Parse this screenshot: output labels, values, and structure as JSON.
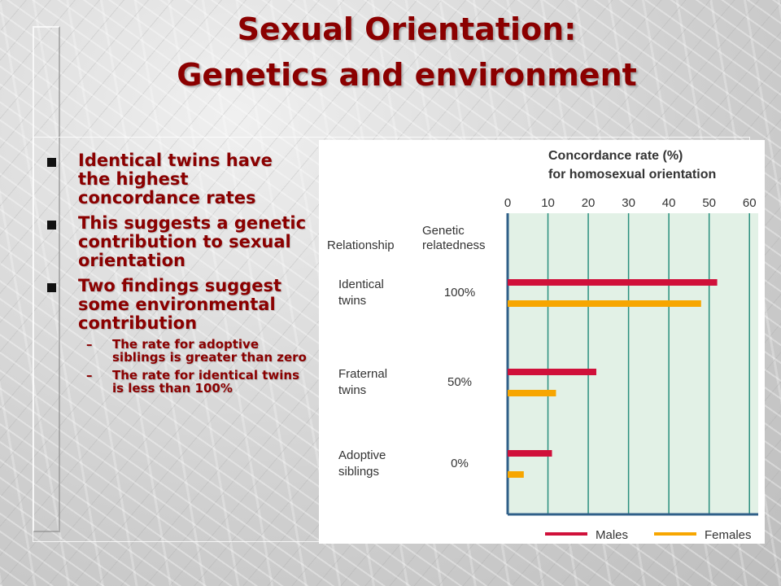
{
  "slide": {
    "title_line1": "Sexual Orientation:",
    "title_line2": "Genetics and environment",
    "bullets": [
      {
        "text": "Identical twins have the highest concordance rates"
      },
      {
        "text": "This suggests a genetic contribution to sexual orientation"
      },
      {
        "text": "Two findings suggest some environmental contribution",
        "sub": [
          "The rate for adoptive siblings is greater than zero",
          "The rate for identical twins is less than 100%"
        ]
      }
    ]
  },
  "chart_data": {
    "type": "bar",
    "orientation": "horizontal",
    "title_line1": "Concordance rate (%)",
    "title_line2": "for homosexual orientation",
    "column_headers": {
      "relationship": "Relationship",
      "genetic_line1": "Genetic",
      "genetic_line2": "relatedness"
    },
    "categories": [
      {
        "line1": "Identical",
        "line2": "twins",
        "relatedness": "100%"
      },
      {
        "line1": "Fraternal",
        "line2": "twins",
        "relatedness": "50%"
      },
      {
        "line1": "Adoptive",
        "line2": "siblings",
        "relatedness": "0%"
      }
    ],
    "series": [
      {
        "name": "Males",
        "color": "#d0103a",
        "values": [
          52,
          22,
          11
        ]
      },
      {
        "name": "Females",
        "color": "#f7a600",
        "values": [
          48,
          12,
          4
        ]
      }
    ],
    "xticks": [
      "0",
      "10",
      "20",
      "30",
      "40",
      "50",
      "60"
    ],
    "xlim": [
      0,
      60
    ],
    "grid": true,
    "plot_background": "#e2f1e6",
    "gridline_color": "#2a8f7e",
    "legend_position": "bottom-right"
  }
}
